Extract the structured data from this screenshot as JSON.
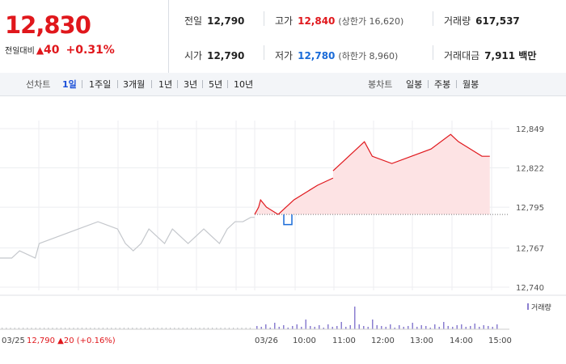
{
  "quote": {
    "price": "12,830",
    "change_label": "전일대비",
    "change_arrow": "▲",
    "change_value": "40",
    "change_pct": "+0.31%"
  },
  "stats": {
    "prev_close": {
      "label": "전일",
      "value": "12,790"
    },
    "open": {
      "label": "시가",
      "value": "12,790"
    },
    "high": {
      "label": "고가",
      "value": "12,840",
      "sub": "(상한가 16,620)"
    },
    "low": {
      "label": "저가",
      "value": "12,780",
      "sub": "(하한가 8,960)"
    },
    "volume": {
      "label": "거래량",
      "value": "617,537"
    },
    "amount": {
      "label": "거래대금",
      "value": "7,911 백만"
    }
  },
  "toolbar": {
    "line_label": "선차트",
    "line_periods": [
      "1일",
      "1주일",
      "3개월",
      "1년",
      "3년",
      "5년",
      "10년"
    ],
    "active_period": "1일",
    "candle_label": "봉차트",
    "candle_periods": [
      "일봉",
      "주봉",
      "월봉"
    ]
  },
  "colors": {
    "up": "#e0171c",
    "down": "#1a6bd8",
    "prev_day": "#c4c7cc",
    "volume": "#8b7fd0",
    "fill_up": "#fde3e4"
  },
  "chart_data": {
    "type": "line",
    "y_ticks": [
      "12,849",
      "12,822",
      "12,795",
      "12,767",
      "12,740"
    ],
    "ylim": [
      12740,
      12849
    ],
    "baseline": 12790,
    "x_ticks": [
      "03/26",
      "10:00",
      "11:00",
      "12:00",
      "13:00",
      "14:00",
      "15:00"
    ],
    "prev_day_label": "03/25",
    "prev_day_close": {
      "value": "12,790",
      "arrow": "▲",
      "change": "20",
      "pct": "(+0.16%)"
    },
    "volume_legend": "거래량",
    "series": [
      {
        "period": "03/25",
        "segments": [
          {
            "x": [
              0,
              0.3,
              0.5,
              0.9,
              1.0
            ],
            "y": [
              12760,
              12760,
              12765,
              12760,
              12770
            ]
          },
          {
            "x": [
              1.0,
              1.5,
              2.0,
              2.5,
              3.0,
              3.2,
              3.4,
              3.6,
              3.8,
              4.0
            ],
            "y": [
              12770,
              12775,
              12780,
              12785,
              12780,
              12770,
              12765,
              12770,
              12780,
              12775
            ]
          },
          {
            "x": [
              4.0,
              4.2,
              4.4,
              4.6,
              4.8,
              5.0,
              5.2,
              5.4,
              5.6,
              5.8,
              6.0,
              6.2,
              6.4,
              6.5
            ],
            "y": [
              12775,
              12770,
              12780,
              12775,
              12770,
              12775,
              12780,
              12775,
              12770,
              12780,
              12785,
              12785,
              12788,
              12788
            ]
          }
        ]
      },
      {
        "period": "03/26",
        "segments": [
          {
            "x": [
              0,
              0.1,
              0.15,
              0.3,
              0.6
            ],
            "y": [
              12790,
              12795,
              12800,
              12795,
              12790
            ]
          },
          {
            "x": [
              0.6,
              0.8,
              1.0,
              1.3,
              1.6,
              2.0
            ],
            "y": [
              12790,
              12795,
              12800,
              12805,
              12810,
              12815
            ]
          },
          {
            "x": [
              2.0,
              2.4,
              2.8,
              3.0,
              3.5,
              4.0,
              4.5,
              5.0,
              5.2,
              5.5,
              5.8,
              6.0
            ],
            "y": [
              12820,
              12830,
              12840,
              12830,
              12825,
              12830,
              12835,
              12845,
              12840,
              12835,
              12830,
              12830
            ]
          }
        ]
      }
    ]
  }
}
